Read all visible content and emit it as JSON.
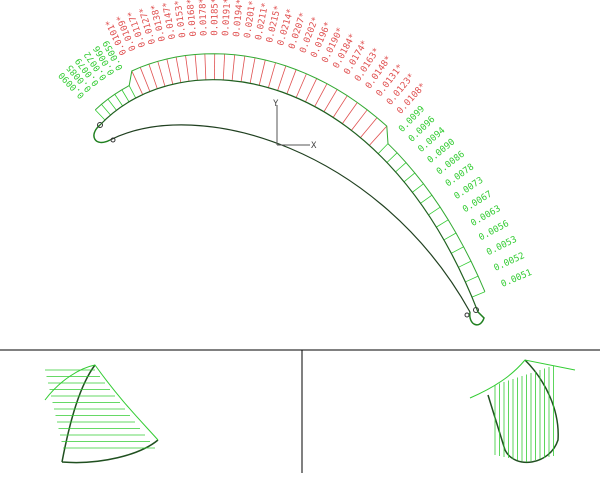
{
  "axes": {
    "x_label": "X",
    "y_label": "Y"
  },
  "label_groups": [
    {
      "color": "#33cc33",
      "labels": [
        "0.0090",
        "0.0085",
        "0.0079",
        "0.0072",
        "0.0066",
        "0.0059"
      ]
    },
    {
      "color": "#e05050",
      "labels": [
        "0.0101*",
        "0.0109*",
        "0.0117*",
        "0.0127*",
        "0.0138*",
        "0.0147*",
        "0.0153*",
        "0.0168*",
        "0.0178*",
        "0.0185*",
        "0.0191*",
        "0.0194*",
        "0.0201*",
        "0.0211*",
        "0.0215*",
        "0.0214*",
        "0.0207*",
        "0.0202*",
        "0.0196*",
        "0.0190*",
        "0.0184*",
        "0.0174*",
        "0.0163*",
        "0.0148*",
        "0.0131*",
        "0.0123*",
        "0.0108*"
      ]
    },
    {
      "color": "#33cc33",
      "labels": [
        "0.0099",
        "0.0096",
        "0.0094",
        "0.0090",
        "0.0086",
        "0.0078",
        "0.0073",
        "0.0067",
        "0.0063",
        "0.0056",
        "0.0053",
        "0.0052",
        "0.0051"
      ]
    }
  ]
}
